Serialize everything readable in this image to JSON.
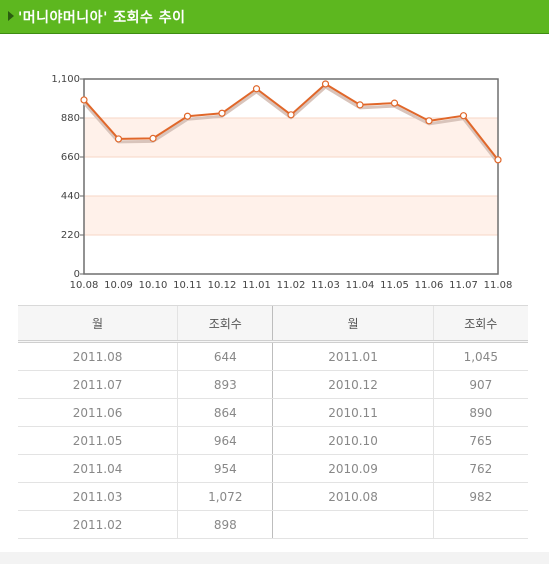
{
  "header": {
    "title": "'머니야머니아' 조회수 추이"
  },
  "chart_data": {
    "type": "line",
    "categories": [
      "10.08",
      "10.09",
      "10.10",
      "10.11",
      "10.12",
      "11.01",
      "11.02",
      "11.03",
      "11.04",
      "11.05",
      "11.06",
      "11.07",
      "11.08"
    ],
    "values": [
      982,
      762,
      765,
      890,
      907,
      1045,
      898,
      1072,
      954,
      964,
      864,
      893,
      644
    ],
    "yticks": [
      0,
      220,
      440,
      660,
      880,
      1100
    ],
    "ytick_labels": [
      "0",
      "220",
      "440",
      "660",
      "880",
      "1,100"
    ],
    "ylim": [
      0,
      1100
    ],
    "line_color": "#e0672a",
    "band_color": "#fff1ea"
  },
  "table": {
    "headers": [
      "월",
      "조회수",
      "월",
      "조회수"
    ],
    "rows": [
      [
        "2011.08",
        "644",
        "2011.01",
        "1,045"
      ],
      [
        "2011.07",
        "893",
        "2010.12",
        "907"
      ],
      [
        "2011.06",
        "864",
        "2010.11",
        "890"
      ],
      [
        "2011.05",
        "964",
        "2010.10",
        "765"
      ],
      [
        "2011.04",
        "954",
        "2010.09",
        "762"
      ],
      [
        "2011.03",
        "1,072",
        "2010.08",
        "982"
      ],
      [
        "2011.02",
        "898",
        "",
        ""
      ]
    ]
  }
}
